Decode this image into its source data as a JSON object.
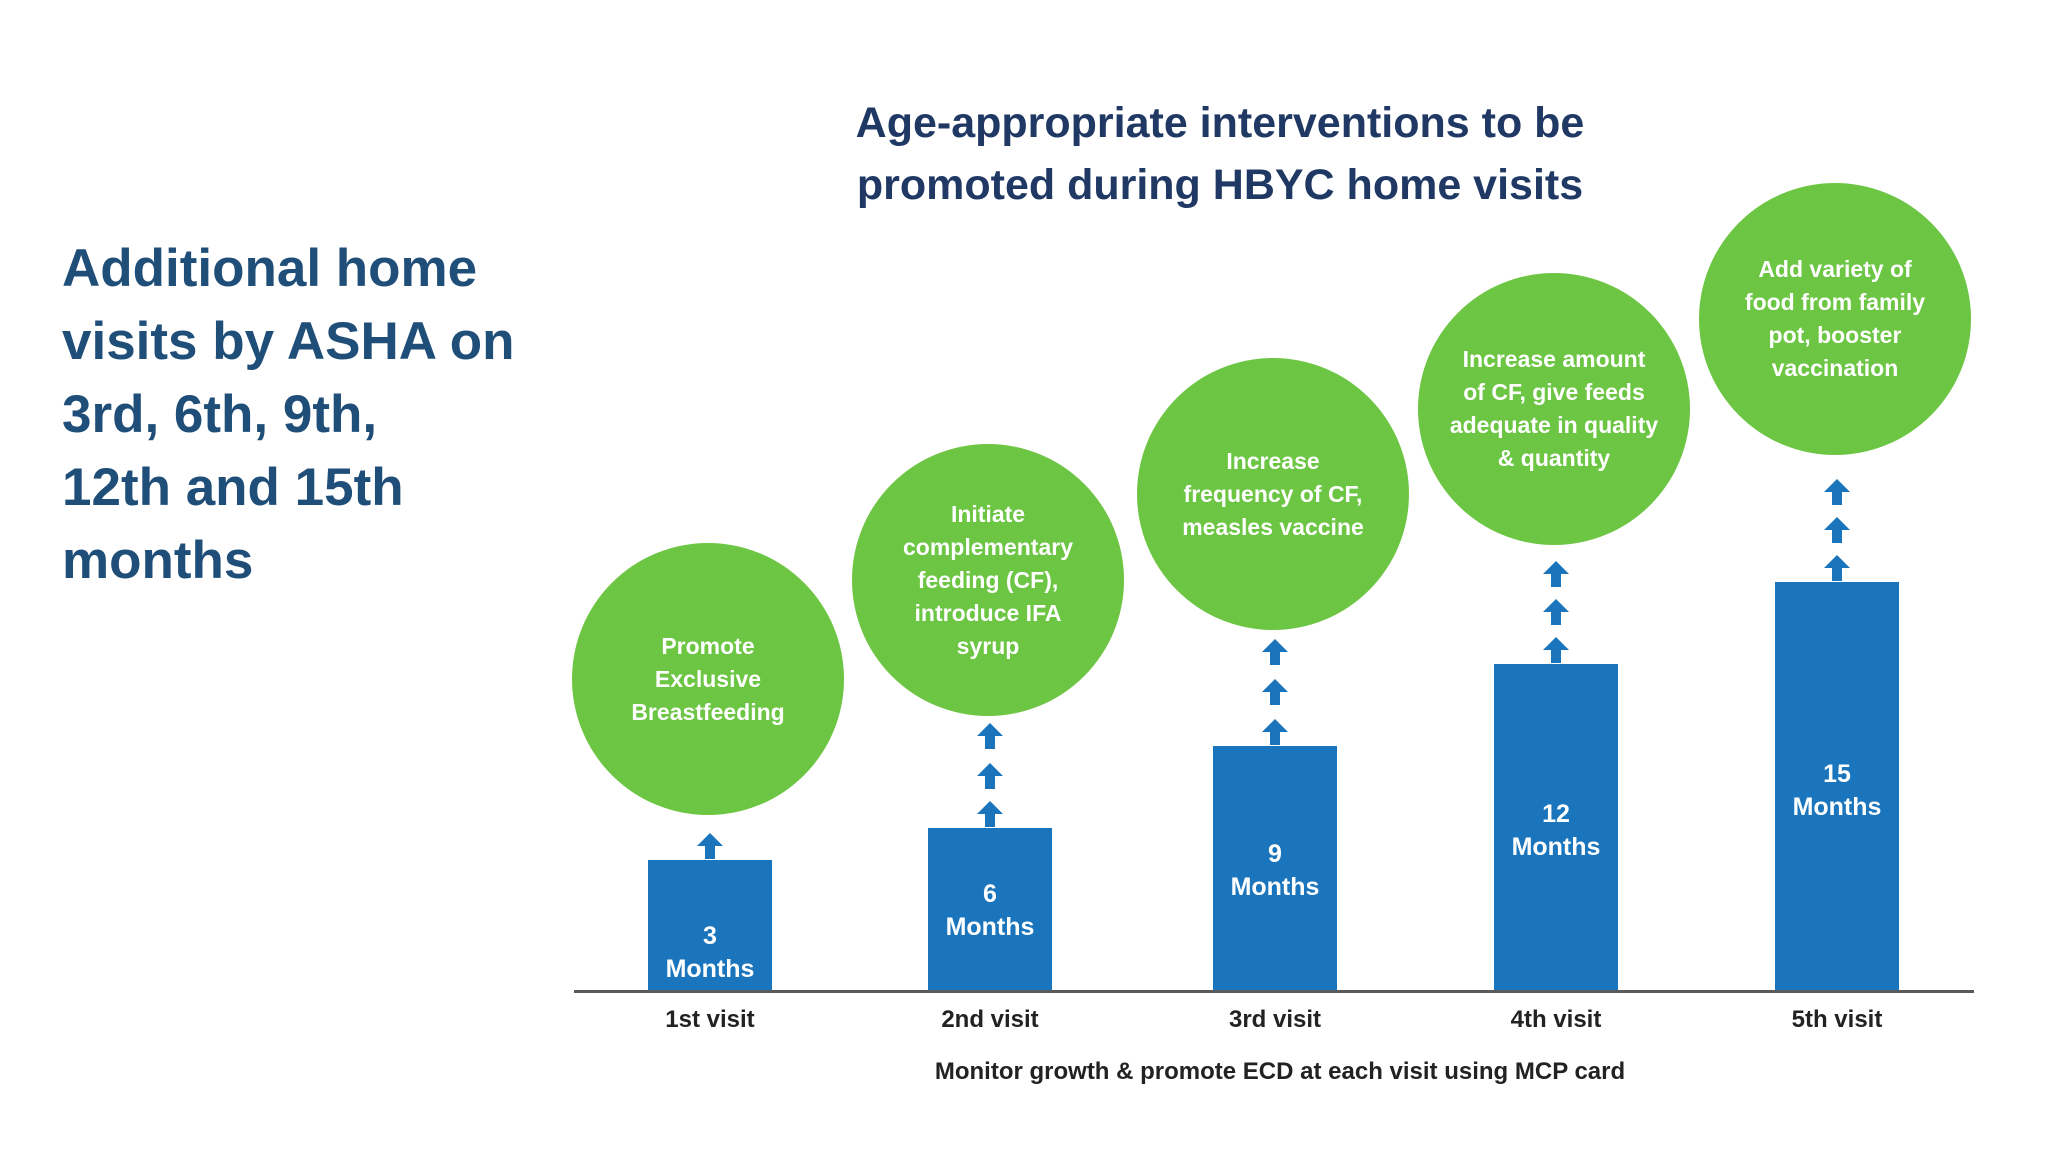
{
  "left_text": {
    "lines": [
      "Additional home",
      "visits by ASHA on",
      "3rd, 6th, 9th,",
      "12th and 15th",
      "months"
    ]
  },
  "title": {
    "lines": [
      "Age-appropriate interventions to be",
      "promoted during HBYC home visits"
    ]
  },
  "visits": [
    {
      "label": "1st visit",
      "age_number": "3",
      "age_unit": "Months",
      "bubble_lines": [
        "Promote",
        "Exclusive",
        "Breastfeeding"
      ]
    },
    {
      "label": "2nd visit",
      "age_number": "6",
      "age_unit": "Months",
      "bubble_lines": [
        "Initiate",
        "complementary",
        "feeding (CF),",
        "introduce IFA",
        "syrup"
      ]
    },
    {
      "label": "3rd visit",
      "age_number": "9",
      "age_unit": "Months",
      "bubble_lines": [
        "Increase",
        "frequency of CF,",
        "measles vaccine"
      ]
    },
    {
      "label": "4th visit",
      "age_number": "12",
      "age_unit": "Months",
      "bubble_lines": [
        "Increase amount",
        "of CF, give feeds",
        "adequate in quality",
        "& quantity"
      ]
    },
    {
      "label": "5th visit",
      "age_number": "15",
      "age_unit": "Months",
      "bubble_lines": [
        "Add variety of",
        "food from family",
        "pot, booster",
        "vaccination"
      ]
    }
  ],
  "caption": "Monitor growth & promote ECD at each visit using MCP card",
  "colors": {
    "bar": "#1a75bc",
    "bubble": "#6cc644",
    "title": "#1f3864",
    "left_text": "#1f4e79"
  }
}
